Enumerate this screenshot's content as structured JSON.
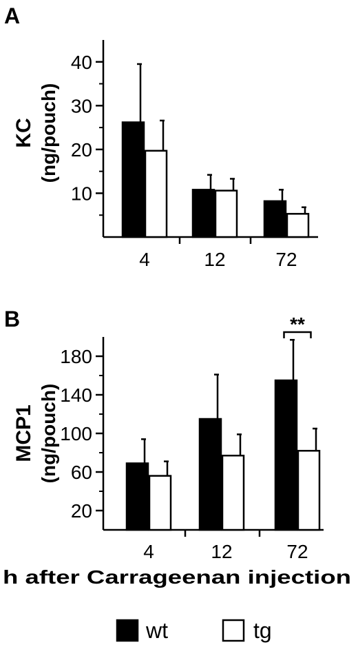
{
  "chart_data": [
    {
      "type": "bar",
      "panel_label": "A",
      "ylabel_line1": "KC",
      "ylabel_line2": "(ng/pouch)",
      "categories": [
        "4",
        "12",
        "72"
      ],
      "ylim": [
        0,
        45
      ],
      "yticks": [
        10,
        20,
        30,
        40
      ],
      "series": [
        {
          "name": "wt",
          "values": [
            26.2,
            10.8,
            8.2
          ],
          "errors": [
            13.3,
            3.4,
            2.6
          ],
          "color": "#000000"
        },
        {
          "name": "tg",
          "values": [
            19.7,
            10.6,
            5.3
          ],
          "errors": [
            6.9,
            2.7,
            1.5
          ],
          "color": "#ffffff"
        }
      ],
      "annotations": []
    },
    {
      "type": "bar",
      "panel_label": "B",
      "ylabel_line1": "MCP1",
      "ylabel_line2": "(ng/pouch)",
      "categories": [
        "4",
        "12",
        "72"
      ],
      "ylim": [
        0,
        200
      ],
      "yticks": [
        20,
        60,
        100,
        140,
        180
      ],
      "series": [
        {
          "name": "wt",
          "values": [
            69,
            115,
            155
          ],
          "errors": [
            25,
            46,
            42
          ],
          "color": "#000000"
        },
        {
          "name": "tg",
          "values": [
            56,
            77,
            82
          ],
          "errors": [
            15,
            22,
            23
          ],
          "color": "#ffffff"
        }
      ],
      "annotations": [
        {
          "text": "**",
          "category": "72"
        }
      ]
    }
  ],
  "xlabel": "h after Carrageenan injection",
  "legend": {
    "placement": "bottom-center",
    "items": [
      {
        "name": "wt",
        "color": "#000000"
      },
      {
        "name": "tg",
        "color": "#ffffff"
      }
    ]
  }
}
